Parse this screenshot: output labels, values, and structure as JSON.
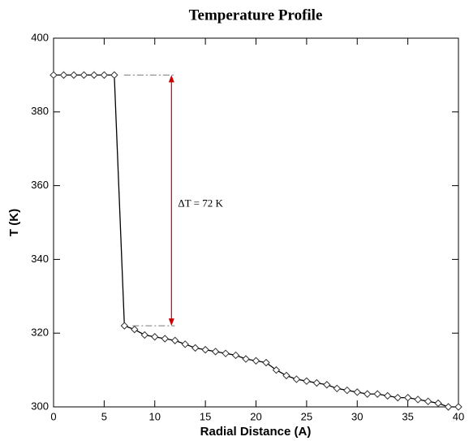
{
  "chart_data": {
    "type": "line",
    "title": "Temperature Profile",
    "x_label": "Radial Distance (A)",
    "y_label": "T (K)",
    "annotation": "ΔT = 72 K",
    "x": [
      0,
      1,
      2,
      3,
      4,
      5,
      6,
      7,
      8,
      9,
      10,
      11,
      12,
      13,
      14,
      15,
      16,
      17,
      18,
      19,
      20,
      21,
      22,
      23,
      24,
      25,
      26,
      27,
      28,
      29,
      30,
      31,
      32,
      33,
      34,
      35,
      36,
      37,
      38,
      39,
      40
    ],
    "series": [
      {
        "name": "T",
        "color": "#000000",
        "values": [
          390,
          390,
          390,
          390,
          390,
          390,
          390,
          322,
          321,
          319.5,
          319,
          318.5,
          318,
          317,
          316,
          315.5,
          315,
          314.5,
          314,
          313,
          312.5,
          312,
          310,
          308.5,
          307.5,
          307,
          306.5,
          306,
          305,
          304.5,
          304,
          303.5,
          303.5,
          303,
          302.5,
          302.5,
          302,
          301.5,
          301,
          300,
          300
        ]
      }
    ],
    "xlim": [
      0,
      40
    ],
    "xticks": [
      0,
      5,
      10,
      15,
      20,
      25,
      30,
      35,
      40
    ],
    "ylim": [
      300,
      400
    ],
    "yticks": [
      300,
      320,
      340,
      360,
      380,
      400
    ],
    "grid": false
  }
}
